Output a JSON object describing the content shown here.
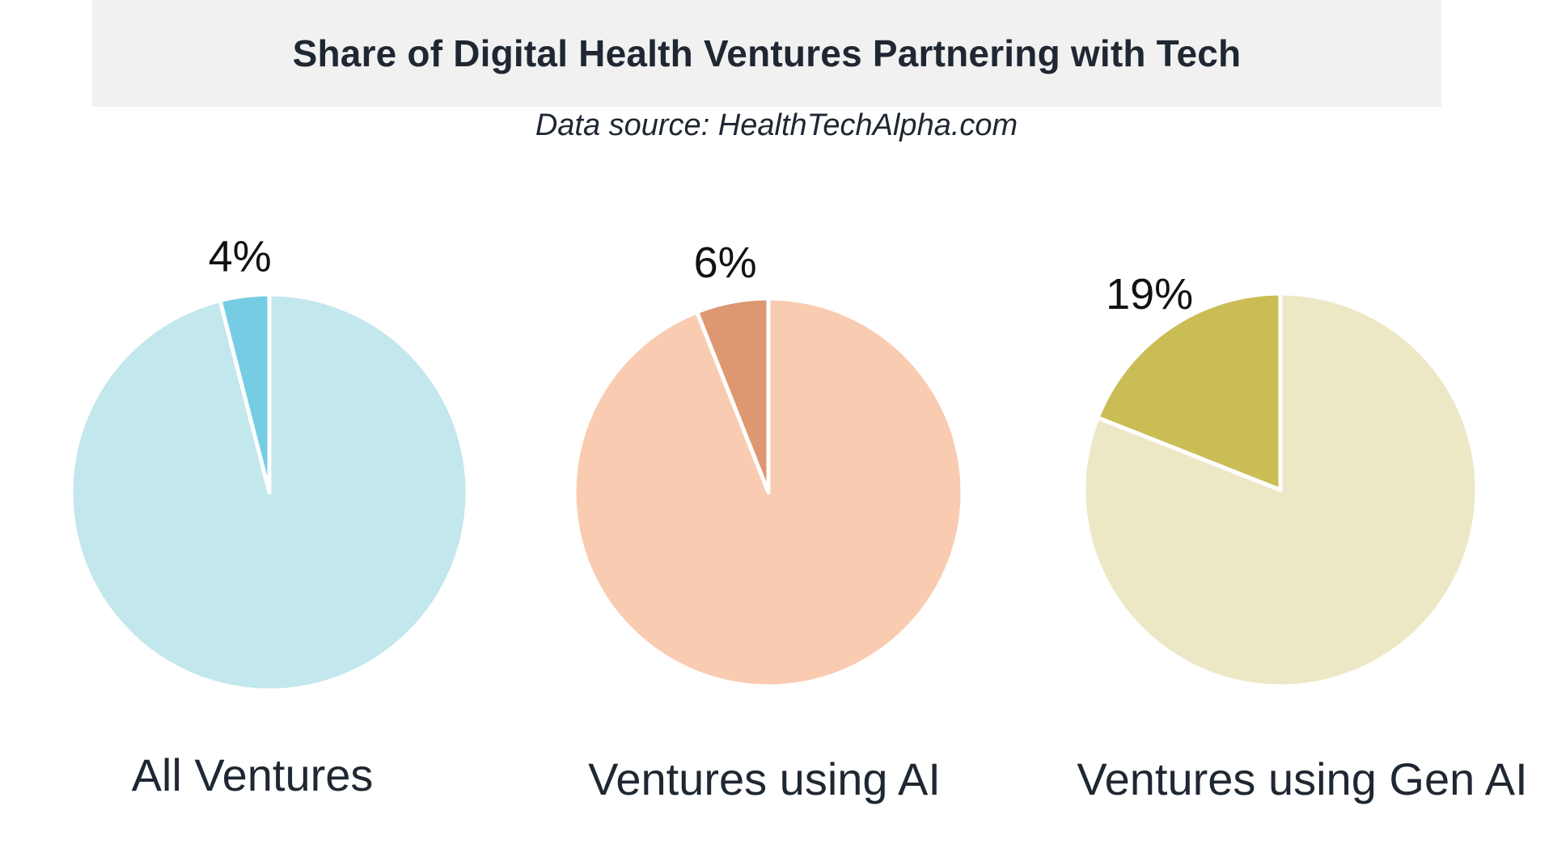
{
  "chart_data": {
    "type": "pie",
    "title": "Share of Digital Health Ventures Partnering with Tech",
    "subtitle": "Data source: HealthTechAlpha.com",
    "pies": [
      {
        "category": "All Ventures",
        "value": 4,
        "label": "4%",
        "highlight_color": "#76cde3",
        "rest_color": "#c2e7ec"
      },
      {
        "category": "Ventures using AI",
        "value": 6,
        "label": "6%",
        "highlight_color": "#dd9771",
        "rest_color": "#f9ccb1"
      },
      {
        "category": "Ventures using Gen AI",
        "value": 19,
        "label": "19%",
        "highlight_color": "#cbbd56",
        "rest_color": "#ece8c6"
      }
    ]
  }
}
